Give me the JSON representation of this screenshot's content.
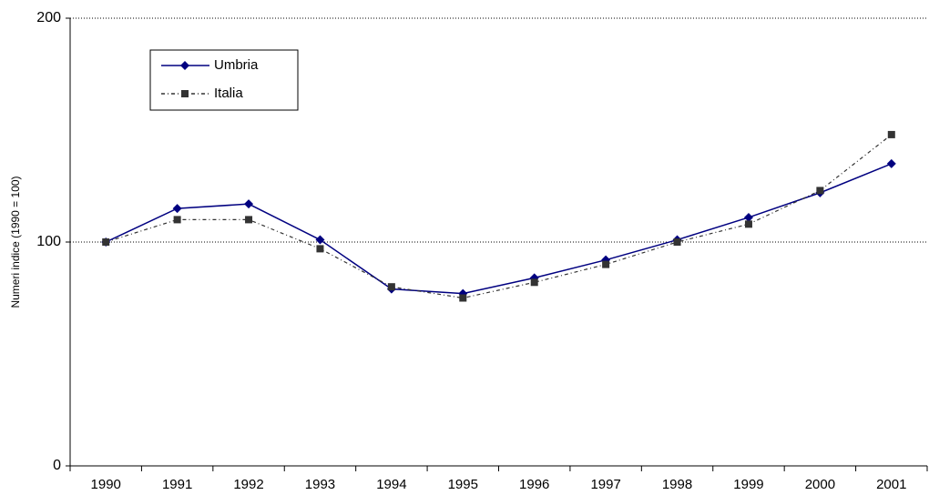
{
  "chart_data": {
    "type": "line",
    "y_label": "Numeri indice (1990 = 100)",
    "categories": [
      "1990",
      "1991",
      "1992",
      "1993",
      "1994",
      "1995",
      "1996",
      "1997",
      "1998",
      "1999",
      "2000",
      "2001"
    ],
    "series": [
      {
        "name": "Umbria",
        "color": "#000080",
        "marker": "diamond",
        "dash": "solid",
        "values": [
          100,
          115,
          117,
          101,
          79,
          77,
          84,
          92,
          101,
          111,
          122,
          135
        ]
      },
      {
        "name": "Italia",
        "color": "#333333",
        "marker": "square",
        "dash": "dashdot",
        "values": [
          100,
          110,
          110,
          97,
          80,
          75,
          82,
          90,
          100,
          108,
          123,
          148
        ]
      }
    ],
    "ylim": [
      0,
      200
    ],
    "yticks": [
      0,
      100,
      200
    ],
    "grid": true,
    "legend": "upper left"
  }
}
